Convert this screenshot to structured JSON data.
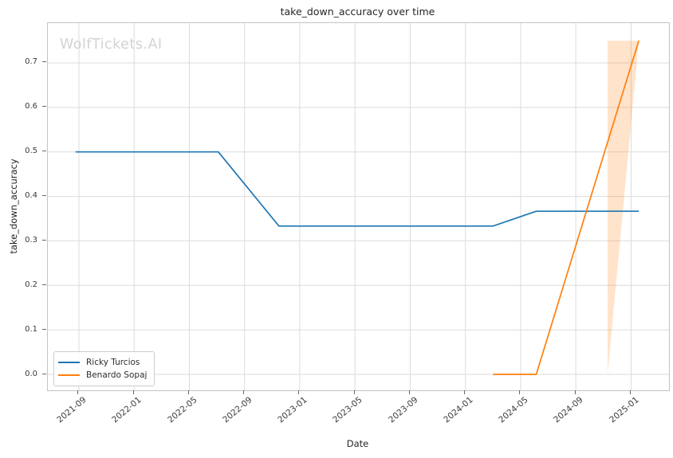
{
  "chart_data": {
    "type": "line",
    "title": "take_down_accuracy over time",
    "watermark": "WolfTickets.AI",
    "grid": true,
    "legend": {
      "position": "lower left"
    },
    "x_axis": {
      "label": "Date",
      "ticks": [
        "2021-09",
        "2022-01",
        "2022-05",
        "2022-09",
        "2023-01",
        "2023-05",
        "2023-09",
        "2024-01",
        "2024-05",
        "2024-09",
        "2025-01"
      ],
      "range_months": [
        -2.25,
        42.75
      ]
    },
    "y_axis": {
      "label": "take_down_accuracy",
      "ticks": [
        0.0,
        0.1,
        0.2,
        0.3,
        0.4,
        0.5,
        0.6,
        0.7
      ],
      "range": [
        -0.0358,
        0.7895
      ]
    },
    "series": [
      {
        "name": "Ricky Turcios",
        "color": "#1f77b4",
        "points": [
          [
            "2021-08-24",
            0.5
          ],
          [
            "2022-07-04",
            0.5
          ],
          [
            "2022-11-16",
            0.3333
          ],
          [
            "2024-03-01",
            0.3333
          ],
          [
            "2024-06-05",
            0.3667
          ],
          [
            "2025-01-18",
            0.3667
          ]
        ]
      },
      {
        "name": "Benardo Sopaj",
        "color": "#ff7f0e",
        "points": [
          [
            "2024-03-01",
            0.0
          ],
          [
            "2024-06-05",
            0.0
          ],
          [
            "2025-01-18",
            0.75
          ]
        ],
        "confidence_band": {
          "x": [
            "2024-11-10",
            "2025-01-18"
          ],
          "lower": [
            0.0,
            0.75
          ],
          "upper": [
            0.75,
            0.75
          ],
          "fill": "rgba(255,127,14,0.22)"
        }
      }
    ]
  }
}
